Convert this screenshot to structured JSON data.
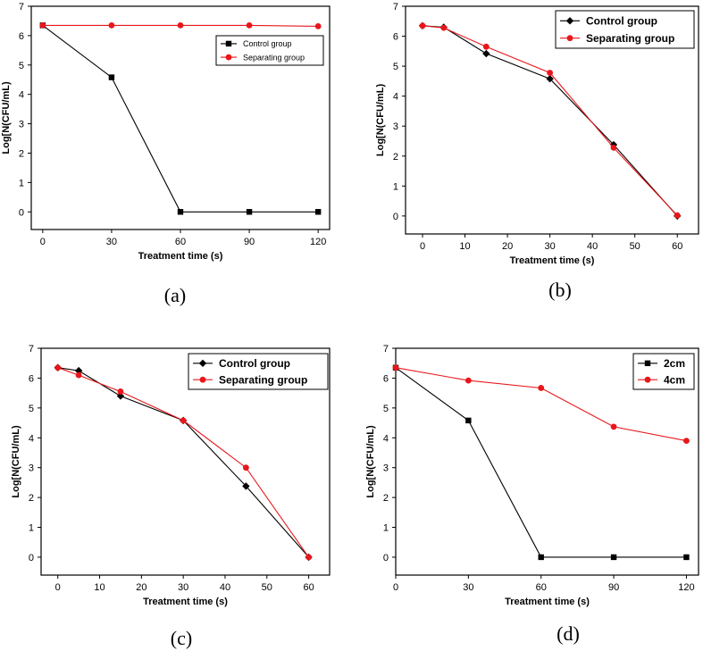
{
  "chart_data": [
    {
      "id": "a",
      "type": "line",
      "caption": "(a)",
      "xlabel": "Treatment time (s)",
      "ylabel": "Log[N(CFU/mL)",
      "xlim": [
        -5,
        125
      ],
      "ylim": [
        -0.6,
        7
      ],
      "xticks": [
        0,
        30,
        60,
        90,
        120
      ],
      "yticks": [
        0,
        1,
        2,
        3,
        4,
        5,
        6,
        7
      ],
      "legend_position": "top-right",
      "series": [
        {
          "name": "Control group",
          "color": "#000000",
          "marker": "square",
          "x": [
            0,
            30,
            60,
            90,
            120
          ],
          "y": [
            6.35,
            4.58,
            0,
            0,
            0
          ]
        },
        {
          "name": "Separating group",
          "color": "#e8161b",
          "marker": "circle",
          "x": [
            0,
            30,
            60,
            90,
            120
          ],
          "y": [
            6.35,
            6.35,
            6.35,
            6.35,
            6.32
          ]
        }
      ]
    },
    {
      "id": "b",
      "type": "line",
      "caption": "(b)",
      "xlabel": "Treatment time (s)",
      "ylabel": "Log[N(CFU/mL)",
      "xlim": [
        -4,
        65
      ],
      "ylim": [
        -0.6,
        7
      ],
      "xticks": [
        0,
        10,
        20,
        30,
        40,
        50,
        60
      ],
      "yticks": [
        0,
        1,
        2,
        3,
        4,
        5,
        6,
        7
      ],
      "legend_position": "top-right",
      "series": [
        {
          "name": "Control group",
          "color": "#000000",
          "marker": "diamond",
          "x": [
            0,
            5,
            15,
            30,
            45,
            60
          ],
          "y": [
            6.35,
            6.3,
            5.42,
            4.58,
            2.38,
            0
          ]
        },
        {
          "name": "Separating group",
          "color": "#e8161b",
          "marker": "circle",
          "x": [
            0,
            5,
            15,
            30,
            45,
            60
          ],
          "y": [
            6.35,
            6.28,
            5.65,
            4.78,
            2.28,
            0.02
          ]
        }
      ]
    },
    {
      "id": "c",
      "type": "line",
      "caption": "(c)",
      "xlabel": "Treatment time (s)",
      "ylabel": "Log[N(CFU/mL)",
      "xlim": [
        -4,
        65
      ],
      "ylim": [
        -0.6,
        7
      ],
      "xticks": [
        0,
        10,
        20,
        30,
        40,
        50,
        60
      ],
      "yticks": [
        0,
        1,
        2,
        3,
        4,
        5,
        6,
        7
      ],
      "legend_position": "top-right",
      "series": [
        {
          "name": "Control group",
          "color": "#000000",
          "marker": "diamond",
          "x": [
            0,
            5,
            15,
            30,
            45,
            60
          ],
          "y": [
            6.35,
            6.25,
            5.4,
            4.58,
            2.38,
            0
          ]
        },
        {
          "name": "Separating group",
          "color": "#e8161b",
          "marker": "circle",
          "x": [
            0,
            5,
            15,
            30,
            45,
            60
          ],
          "y": [
            6.35,
            6.1,
            5.55,
            4.58,
            3.0,
            0
          ]
        }
      ]
    },
    {
      "id": "d",
      "type": "line",
      "caption": "(d)",
      "xlabel": "Treatment time (s)",
      "ylabel": "Log[N(CFU/mL)",
      "xlim": [
        0,
        125
      ],
      "ylim": [
        -0.6,
        7
      ],
      "xticks": [
        0,
        30,
        60,
        90,
        120
      ],
      "yticks": [
        0,
        1,
        2,
        3,
        4,
        5,
        6,
        7
      ],
      "legend_position": "top-right",
      "series": [
        {
          "name": "2cm",
          "color": "#000000",
          "marker": "square",
          "x": [
            0,
            30,
            60,
            90,
            120
          ],
          "y": [
            6.35,
            4.58,
            0,
            0,
            0
          ]
        },
        {
          "name": "4cm",
          "color": "#e8161b",
          "marker": "circle",
          "x": [
            0,
            30,
            60,
            90,
            120
          ],
          "y": [
            6.35,
            5.92,
            5.67,
            4.37,
            3.9
          ]
        }
      ]
    }
  ]
}
